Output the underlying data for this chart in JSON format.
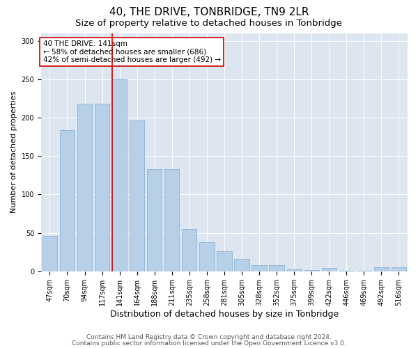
{
  "title": "40, THE DRIVE, TONBRIDGE, TN9 2LR",
  "subtitle": "Size of property relative to detached houses in Tonbridge",
  "xlabel": "Distribution of detached houses by size in Tonbridge",
  "ylabel": "Number of detached properties",
  "categories": [
    "47sqm",
    "70sqm",
    "94sqm",
    "117sqm",
    "141sqm",
    "164sqm",
    "188sqm",
    "211sqm",
    "235sqm",
    "258sqm",
    "281sqm",
    "305sqm",
    "328sqm",
    "352sqm",
    "375sqm",
    "399sqm",
    "422sqm",
    "446sqm",
    "469sqm",
    "492sqm",
    "516sqm"
  ],
  "values": [
    46,
    184,
    218,
    218,
    250,
    196,
    133,
    133,
    55,
    38,
    26,
    16,
    8,
    8,
    3,
    2,
    4,
    1,
    1,
    5,
    5
  ],
  "bar_color": "#b8cfe8",
  "bar_edge_color": "#7aabd4",
  "highlight_index": 4,
  "highlight_line_color": "#cc0000",
  "annotation_text": "40 THE DRIVE: 141sqm\n← 58% of detached houses are smaller (686)\n42% of semi-detached houses are larger (492) →",
  "annotation_box_color": "#ffffff",
  "annotation_box_edge_color": "#cc0000",
  "ylim": [
    0,
    310
  ],
  "yticks": [
    0,
    50,
    100,
    150,
    200,
    250,
    300
  ],
  "background_color": "#dde6f0",
  "footer_line1": "Contains HM Land Registry data © Crown copyright and database right 2024.",
  "footer_line2": "Contains public sector information licensed under the Open Government Licence v3.0.",
  "title_fontsize": 11,
  "subtitle_fontsize": 9.5,
  "xlabel_fontsize": 9,
  "ylabel_fontsize": 8,
  "tick_fontsize": 7,
  "annotation_fontsize": 7.5,
  "footer_fontsize": 6.5
}
